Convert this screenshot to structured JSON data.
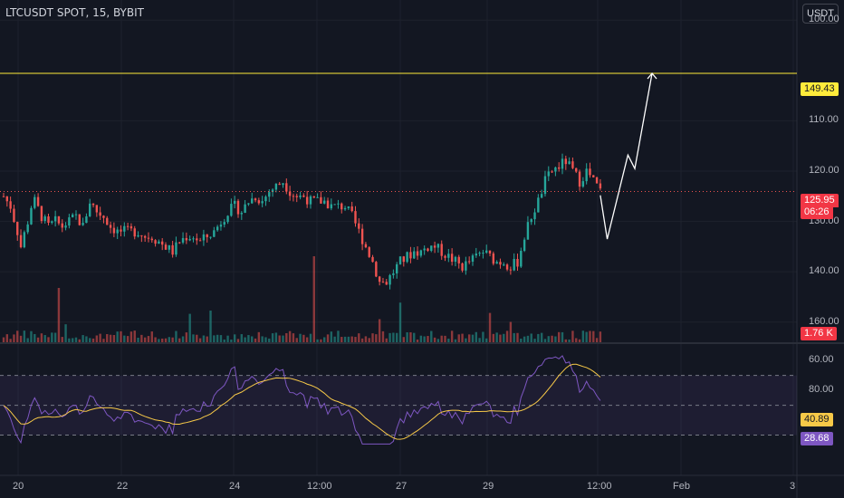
{
  "header": {
    "symbol_line": "LTCUSDT SPOT, 15, BYBIT",
    "currency_button": "USDT"
  },
  "colors": {
    "bg": "#131722",
    "up": "#26a69a",
    "down": "#ef5350",
    "rsi": "#7e57c2",
    "rsi_ma": "#f7c948",
    "level": "#ffeb3b",
    "projection": "#ffffff"
  },
  "price_axis": {
    "ticks": [
      "160.00",
      "140.00",
      "130.00",
      "120.00",
      "110.00",
      "100.00"
    ]
  },
  "rsi_axis": {
    "ticks": [
      "80.00",
      "60.00"
    ]
  },
  "time_axis": {
    "ticks": [
      "20",
      "22",
      "24",
      "12:00",
      "27",
      "29",
      "12:00",
      "Feb",
      "3"
    ]
  },
  "badges": {
    "level": "149.43",
    "last_price": "125.95",
    "countdown": "06:26",
    "volume": "1.76 K",
    "rsi_ma": "40.89",
    "rsi": "28.68"
  },
  "chart_data": {
    "type": "candlestick",
    "symbol": "LTCUSDT SPOT",
    "interval": "15",
    "exchange": "BYBIT",
    "price_axis": {
      "ylim": [
        96,
        164
      ],
      "ticks": [
        100,
        110,
        120,
        130,
        140,
        160
      ]
    },
    "rsi_axis": {
      "ylim": [
        20,
        88
      ],
      "ticks": [
        60,
        80
      ],
      "bands": [
        30,
        50,
        70
      ]
    },
    "x_ticks": [
      "20",
      "22",
      "24",
      "12:00",
      "27",
      "29",
      "12:00",
      "Feb",
      "3"
    ],
    "horizontal_level": 149.43,
    "last_price": 125.95,
    "last_volume": "1.76 K",
    "rsi_value": 28.68,
    "rsi_ma_value": 40.89,
    "price_path": [
      {
        "t": 0,
        "p": 125
      },
      {
        "t": 2,
        "p": 123
      },
      {
        "t": 4,
        "p": 118
      },
      {
        "t": 5,
        "p": 115
      },
      {
        "t": 7,
        "p": 120
      },
      {
        "t": 8,
        "p": 123
      },
      {
        "t": 9,
        "p": 124
      },
      {
        "t": 11,
        "p": 121
      },
      {
        "t": 13,
        "p": 119
      },
      {
        "t": 15,
        "p": 120
      },
      {
        "t": 17,
        "p": 119
      },
      {
        "t": 19,
        "p": 120
      },
      {
        "t": 21,
        "p": 121
      },
      {
        "t": 23,
        "p": 119
      },
      {
        "t": 25,
        "p": 124
      },
      {
        "t": 27,
        "p": 122
      },
      {
        "t": 29,
        "p": 121
      },
      {
        "t": 31,
        "p": 119
      },
      {
        "t": 33,
        "p": 118
      },
      {
        "t": 35,
        "p": 118
      },
      {
        "t": 37,
        "p": 118
      },
      {
        "t": 39,
        "p": 118
      },
      {
        "t": 41,
        "p": 117
      },
      {
        "t": 43,
        "p": 117
      },
      {
        "t": 45,
        "p": 116
      },
      {
        "t": 47,
        "p": 115
      },
      {
        "t": 49,
        "p": 114
      },
      {
        "t": 51,
        "p": 116
      },
      {
        "t": 53,
        "p": 117
      },
      {
        "t": 55,
        "p": 117
      },
      {
        "t": 57,
        "p": 116
      },
      {
        "t": 59,
        "p": 117
      },
      {
        "t": 61,
        "p": 118
      },
      {
        "t": 63,
        "p": 120
      },
      {
        "t": 65,
        "p": 122
      },
      {
        "t": 67,
        "p": 123
      },
      {
        "t": 69,
        "p": 122
      },
      {
        "t": 71,
        "p": 124
      },
      {
        "t": 73,
        "p": 125
      },
      {
        "t": 75,
        "p": 124
      },
      {
        "t": 77,
        "p": 126
      },
      {
        "t": 79,
        "p": 127
      },
      {
        "t": 81,
        "p": 128
      },
      {
        "t": 83,
        "p": 126
      },
      {
        "t": 85,
        "p": 125
      },
      {
        "t": 87,
        "p": 125
      },
      {
        "t": 89,
        "p": 124
      },
      {
        "t": 91,
        "p": 124
      },
      {
        "t": 93,
        "p": 124
      },
      {
        "t": 95,
        "p": 123
      },
      {
        "t": 97,
        "p": 123
      },
      {
        "t": 99,
        "p": 123
      },
      {
        "t": 101,
        "p": 121
      },
      {
        "t": 103,
        "p": 118
      },
      {
        "t": 105,
        "p": 115
      },
      {
        "t": 107,
        "p": 112
      },
      {
        "t": 109,
        "p": 108
      },
      {
        "t": 111,
        "p": 108
      },
      {
        "t": 113,
        "p": 110
      },
      {
        "t": 115,
        "p": 112
      },
      {
        "t": 117,
        "p": 113
      },
      {
        "t": 119,
        "p": 114
      },
      {
        "t": 121,
        "p": 114
      },
      {
        "t": 123,
        "p": 115
      },
      {
        "t": 125,
        "p": 115
      },
      {
        "t": 127,
        "p": 114
      },
      {
        "t": 129,
        "p": 113
      },
      {
        "t": 131,
        "p": 112
      },
      {
        "t": 133,
        "p": 111
      },
      {
        "t": 135,
        "p": 112
      },
      {
        "t": 137,
        "p": 113
      },
      {
        "t": 139,
        "p": 114
      },
      {
        "t": 141,
        "p": 113
      },
      {
        "t": 143,
        "p": 112
      },
      {
        "t": 145,
        "p": 112
      },
      {
        "t": 147,
        "p": 111
      },
      {
        "t": 149,
        "p": 112
      },
      {
        "t": 151,
        "p": 117
      },
      {
        "t": 153,
        "p": 121
      },
      {
        "t": 155,
        "p": 124
      },
      {
        "t": 157,
        "p": 128
      },
      {
        "t": 159,
        "p": 130
      },
      {
        "t": 161,
        "p": 131
      },
      {
        "t": 163,
        "p": 132
      },
      {
        "t": 165,
        "p": 130
      },
      {
        "t": 167,
        "p": 128
      },
      {
        "t": 169,
        "p": 130
      },
      {
        "t": 171,
        "p": 128
      },
      {
        "t": 173,
        "p": 126
      }
    ],
    "projection": [
      {
        "t": 173,
        "p": 125.2
      },
      {
        "t": 175,
        "p": 116.5
      },
      {
        "t": 181,
        "p": 133.2
      },
      {
        "t": 183,
        "p": 130.5
      },
      {
        "t": 188,
        "p": 149.43
      }
    ]
  }
}
